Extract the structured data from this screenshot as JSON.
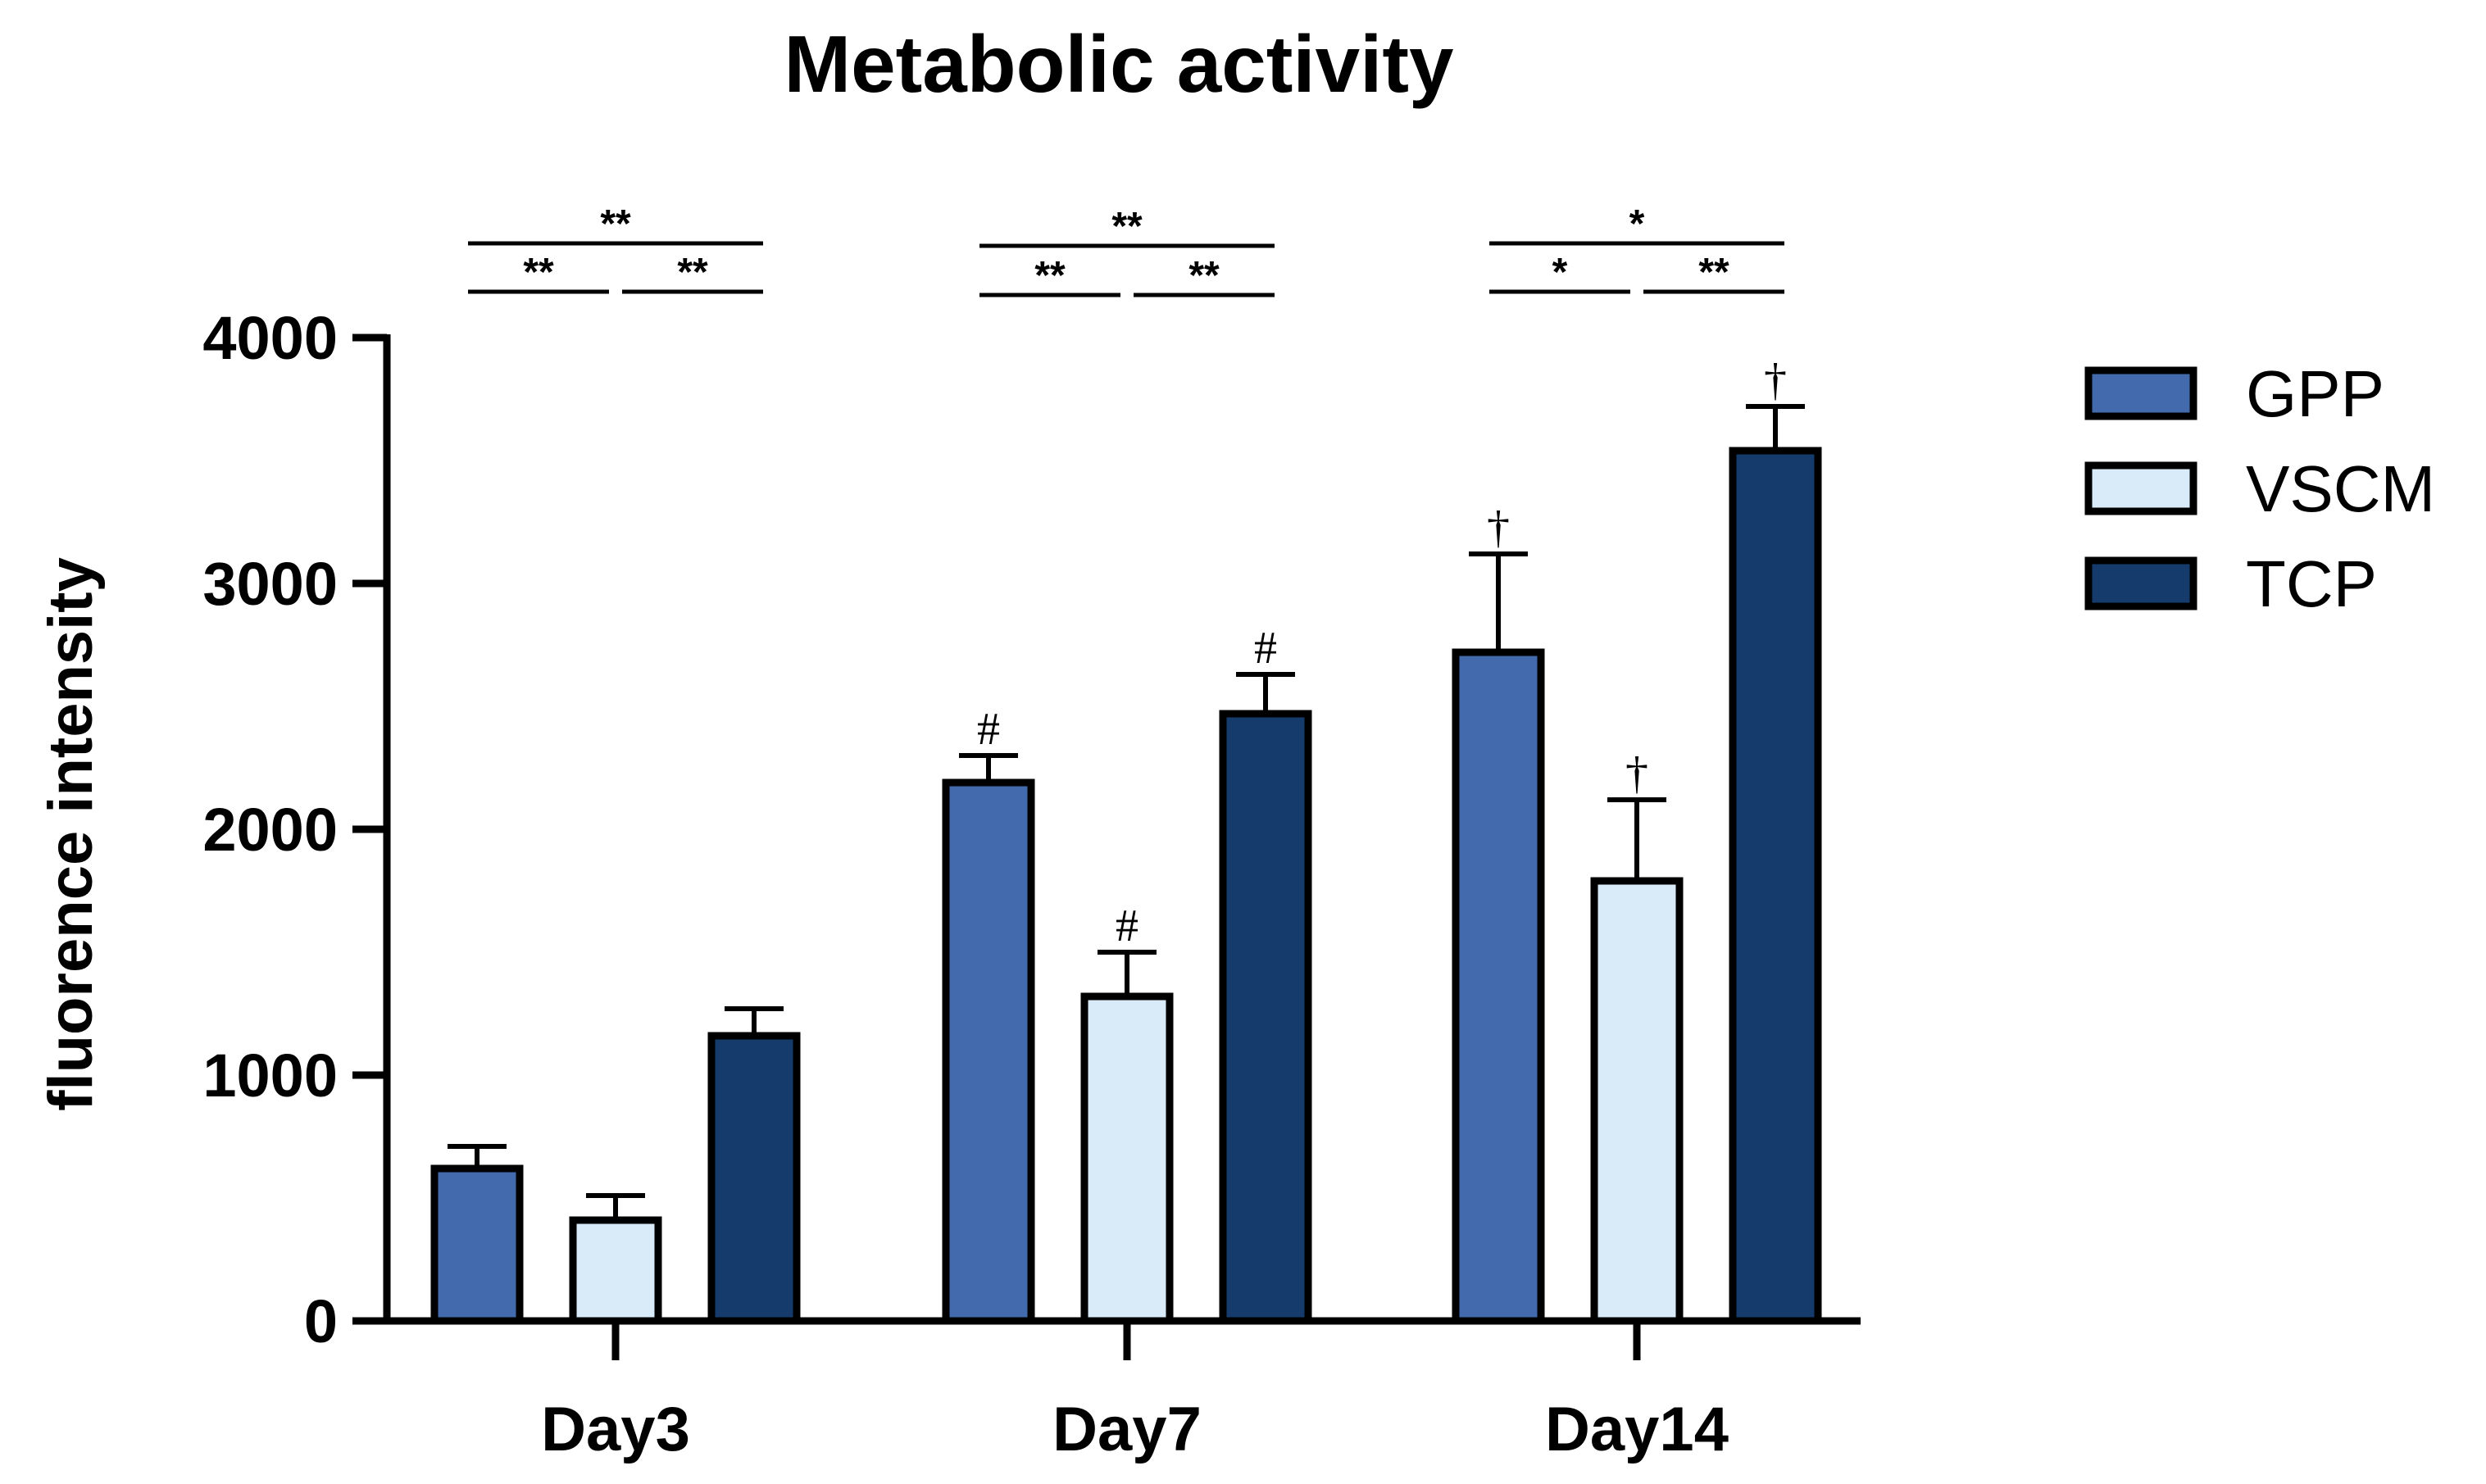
{
  "chart_data": {
    "type": "bar",
    "title": "Metabolic activity",
    "xlabel": "",
    "ylabel": "fluorence intensity",
    "ylim": [
      0,
      4000
    ],
    "yticks": [
      "0",
      "1000",
      "2000",
      "3000",
      "4000"
    ],
    "categories": [
      "Day3",
      "Day7",
      "Day14"
    ],
    "series": [
      {
        "name": "GPP",
        "color": "#426aad",
        "values": [
          620,
          2190,
          2720
        ],
        "errors": [
          90,
          110,
          400
        ],
        "marks": [
          "",
          "#",
          "†"
        ]
      },
      {
        "name": "VSCM",
        "color": "#d9eaf9",
        "values": [
          410,
          1320,
          1790
        ],
        "errors": [
          100,
          180,
          330
        ],
        "marks": [
          "",
          "#",
          "†"
        ]
      },
      {
        "name": "TCP",
        "color": "#153b6c",
        "values": [
          1160,
          2470,
          3540
        ],
        "errors": [
          110,
          160,
          180
        ],
        "marks": [
          "",
          "#",
          "†"
        ]
      }
    ],
    "legend": {
      "position": "right"
    },
    "significance": [
      {
        "category": "Day3",
        "overall": "**",
        "left": "**",
        "right": "**"
      },
      {
        "category": "Day7",
        "overall": "**",
        "left": "**",
        "right": "**"
      },
      {
        "category": "Day14",
        "overall": "*",
        "left": "*",
        "right": "**"
      }
    ]
  }
}
